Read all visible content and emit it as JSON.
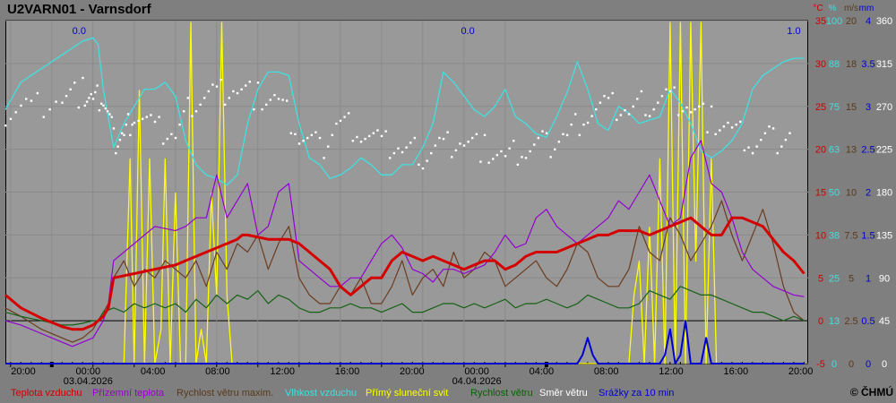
{
  "title": "U2VARN01 - Varnsdorf",
  "copyright": "© ČHMÚ",
  "colors": {
    "temp": "#d40000",
    "ground": "#9400d3",
    "gust": "#6b3c1e",
    "humidity": "#40e0e0",
    "sun": "#ffff00",
    "wind": "#136113",
    "direction": "#ffffff",
    "rain": "#0000cc"
  },
  "legend": [
    {
      "label": "Teplota vzduchu",
      "color": "#cc0000"
    },
    {
      "label": "Přízemní teplota",
      "color": "#9900cc"
    },
    {
      "label": "Rychlost větru maxim.",
      "color": "#5a3a1a"
    },
    {
      "label": "Vlhkost vzduchu",
      "color": "#40e0e0"
    },
    {
      "label": "Přímý sluneční svit",
      "color": "#ffff00"
    },
    {
      "label": "Rychlost větru",
      "color": "#006600"
    },
    {
      "label": "Směr větru",
      "color": "#ffffff"
    },
    {
      "label": "Srážky za 10 min",
      "color": "#0000cc"
    }
  ],
  "axis_headers": [
    {
      "text": "°C",
      "color": "#cc0000"
    },
    {
      "text": "%",
      "color": "#40e0e0"
    },
    {
      "text": "m/s",
      "color": "#5a3a1a"
    },
    {
      "text": "mm",
      "color": "#0000cc"
    }
  ],
  "chart_data": {
    "type": "line",
    "x_tick_labels": [
      "20:00",
      "00:00",
      "04:00",
      "08:00",
      "12:00",
      "16:00",
      "20:00",
      "00:00",
      "04:00",
      "08:00",
      "12:00",
      "16:00",
      "20:00"
    ],
    "date_labels": [
      "03.04.2026",
      "04.04.2026"
    ],
    "precip_totals": [
      "0.0",
      "0.0",
      "1.0"
    ],
    "right_axes": {
      "temperature_C": [
        35,
        30,
        25,
        20,
        15,
        10,
        5,
        0,
        -5
      ],
      "humidity_pct": [
        100,
        88,
        75,
        63,
        50,
        38,
        25,
        13,
        0
      ],
      "wind_ms": [
        20,
        18,
        15,
        13,
        10,
        7.5,
        5,
        2.5,
        0
      ],
      "precip_mm": [
        4,
        3.5,
        3,
        2.5,
        2,
        1.5,
        1,
        0.5,
        0
      ],
      "wind_dir_deg": [
        360,
        315,
        270,
        225,
        180,
        135,
        90,
        45,
        0
      ]
    },
    "ylim_temperature": [
      -5,
      35
    ],
    "hours_start": 19.5,
    "series": [
      {
        "name": "Teplota vzduchu",
        "unit": "°C",
        "x": [
          19.5,
          21,
          23,
          25,
          26,
          27,
          28,
          28.5,
          29,
          29.5,
          30,
          32,
          34,
          36,
          38,
          40,
          41,
          42,
          42.5,
          43,
          45,
          47,
          48,
          49,
          51,
          52,
          53,
          54,
          55,
          56,
          57,
          58,
          59,
          60,
          61,
          62,
          63,
          64,
          65,
          66,
          67,
          68,
          69,
          70,
          71,
          72,
          73,
          74,
          75,
          76,
          77,
          78,
          79,
          80,
          81,
          82,
          83,
          84,
          85,
          86,
          87,
          88,
          89,
          90,
          91,
          92,
          93,
          94,
          95,
          96,
          97
        ],
        "y": [
          3,
          1.5,
          0.3,
          -0.7,
          -1,
          -1,
          -0.5,
          0,
          0.5,
          1.5,
          5,
          5.5,
          6,
          6.5,
          7.5,
          8.5,
          9,
          9.5,
          10,
          10,
          9.5,
          9.5,
          9,
          8,
          6,
          4,
          3,
          4,
          5,
          5,
          7,
          8,
          7.5,
          7,
          7.5,
          7,
          6.5,
          6,
          6.5,
          7,
          7,
          6,
          6.5,
          7.5,
          8,
          8,
          8,
          8.5,
          9,
          9.5,
          10,
          10,
          10.5,
          10.5,
          10.5,
          10,
          10.5,
          11,
          11.5,
          12,
          11,
          10,
          10,
          12,
          12,
          11.5,
          11,
          9.5,
          8,
          7,
          5.5
        ]
      },
      {
        "name": "Přízemní teplota",
        "unit": "°C",
        "x": [
          19.5,
          21,
          23,
          25,
          26,
          27,
          28,
          28.5,
          29,
          29.5,
          30,
          32,
          34,
          36,
          37,
          38,
          39,
          40,
          41,
          42,
          43,
          44,
          45,
          46,
          47,
          48,
          49,
          50,
          51,
          52,
          53,
          54,
          55,
          56,
          57,
          58,
          59,
          60,
          61,
          62,
          63,
          64,
          65,
          66,
          67,
          68,
          69,
          70,
          71,
          72,
          73,
          74,
          75,
          76,
          77,
          78,
          79,
          80,
          81,
          82,
          83,
          84,
          85,
          86,
          87,
          88,
          89,
          90,
          91,
          92,
          93,
          94,
          95,
          96,
          97
        ],
        "y": [
          0,
          -0.5,
          -1.5,
          -2.5,
          -3,
          -2.5,
          -2,
          -1,
          0,
          2,
          7,
          9,
          11,
          10.5,
          11,
          12,
          12,
          17,
          12,
          14,
          16,
          10,
          11,
          15,
          16,
          7,
          6,
          5,
          4,
          4,
          5,
          5,
          7,
          9,
          10,
          8.5,
          6,
          5.5,
          4.5,
          6,
          6,
          5.5,
          6,
          6.5,
          8,
          10,
          8.5,
          9,
          12,
          13,
          11,
          10,
          9,
          10,
          11,
          12,
          14,
          13,
          15,
          17,
          14,
          11,
          12,
          19,
          21,
          16,
          15,
          12,
          8,
          6,
          5,
          4,
          3.5,
          3,
          2.8
        ]
      },
      {
        "name": "Rychlost větru maxim.",
        "unit": "m/s",
        "x": [
          19.5,
          21,
          23,
          25,
          26,
          27,
          28,
          28.5,
          29,
          29.5,
          30,
          31,
          32,
          33,
          34,
          35,
          36,
          37,
          38,
          39,
          40,
          41,
          42,
          43,
          44,
          45,
          46,
          47,
          48,
          49,
          50,
          51,
          52,
          53,
          54,
          55,
          56,
          57,
          58,
          59,
          60,
          61,
          62,
          63,
          64,
          65,
          66,
          67,
          68,
          69,
          70,
          71,
          72,
          73,
          74,
          75,
          76,
          77,
          78,
          79,
          80,
          81,
          82,
          83,
          84,
          85,
          86,
          87,
          88,
          89,
          90,
          91,
          92,
          93,
          94,
          95,
          96,
          97
        ],
        "y": [
          1.5,
          0.5,
          -1,
          -2,
          -2.5,
          -2,
          -1,
          0,
          1,
          2,
          5,
          7,
          4,
          6,
          5,
          7,
          6,
          5,
          7,
          4,
          8,
          6,
          9,
          8,
          10,
          6,
          9,
          11,
          5,
          3,
          2,
          2,
          4,
          3,
          5,
          2,
          2,
          4,
          7,
          3,
          5,
          6,
          4,
          8,
          5,
          6,
          8,
          7,
          4,
          5,
          6,
          7,
          5,
          4,
          6,
          9,
          8,
          5,
          4,
          4,
          6,
          11,
          8,
          7,
          12,
          10,
          7,
          9,
          11,
          14,
          10,
          7,
          10,
          13,
          9,
          4,
          1,
          0
        ]
      },
      {
        "name": "Vlhkost vzduchu",
        "unit": "%",
        "x": [
          19.5,
          21,
          23,
          25,
          26,
          27,
          28,
          28.5,
          29,
          30,
          31,
          32,
          33,
          34,
          35,
          36,
          37,
          38,
          39,
          40,
          41,
          42,
          43,
          44,
          45,
          46,
          47,
          48,
          49,
          50,
          51,
          52,
          53,
          54,
          55,
          56,
          57,
          58,
          59,
          60,
          61,
          62,
          63,
          64,
          65,
          66,
          67,
          68,
          69,
          70,
          71,
          72,
          73,
          74,
          75,
          76,
          77,
          78,
          79,
          80,
          81,
          82,
          83,
          84,
          85,
          86,
          87,
          88,
          89,
          90,
          91,
          92,
          93,
          94,
          95,
          96,
          97
        ],
        "y": [
          74,
          82,
          86,
          90,
          92,
          94,
          95,
          93,
          80,
          63,
          70,
          75,
          80,
          80,
          82,
          78,
          65,
          58,
          55,
          54,
          52,
          55,
          70,
          80,
          85,
          85,
          84,
          70,
          60,
          58,
          54,
          55,
          57,
          60,
          58,
          55,
          55,
          58,
          58,
          63,
          70,
          85,
          82,
          78,
          74,
          72,
          75,
          80,
          72,
          70,
          67,
          66,
          72,
          79,
          88,
          80,
          70,
          68,
          75,
          73,
          70,
          71,
          72,
          80,
          76,
          70,
          62,
          60,
          62,
          65,
          70,
          80,
          84,
          86,
          88,
          89,
          89
        ]
      },
      {
        "name": "Přímý sluneční svit",
        "unit": "0-1",
        "x": [
          19.5,
          31,
          31.3,
          31.6,
          32,
          32.5,
          33,
          33.5,
          34,
          34.6,
          35,
          35.5,
          36,
          36.5,
          37,
          37.5,
          38,
          38.5,
          39,
          39.5,
          40,
          40.5,
          41,
          41.5,
          42,
          80,
          80.5,
          81,
          81.5,
          82,
          82.5,
          83,
          83.5,
          84,
          84.5,
          85,
          85.5,
          86,
          86.5,
          87,
          87.5,
          88,
          88.5,
          89,
          89.5,
          90,
          97
        ],
        "y": [
          0,
          0,
          0.3,
          0.6,
          0,
          0.8,
          0,
          0.6,
          0,
          0.1,
          0.6,
          0,
          0.5,
          0,
          0,
          1,
          0,
          0.1,
          0,
          0.5,
          0.2,
          1,
          0.2,
          0,
          0,
          0,
          0.2,
          0.3,
          0,
          0.4,
          0,
          0.6,
          0,
          1,
          0,
          1,
          0,
          1,
          0.3,
          1,
          0,
          0.6,
          0,
          0,
          0,
          0,
          0
        ]
      },
      {
        "name": "Rychlost větru",
        "unit": "m/s",
        "x": [
          19.5,
          21,
          23,
          25,
          26,
          27,
          28,
          28.5,
          29,
          30,
          31,
          32,
          33,
          34,
          35,
          36,
          37,
          38,
          39,
          40,
          41,
          42,
          43,
          44,
          45,
          46,
          47,
          48,
          49,
          50,
          51,
          52,
          53,
          54,
          55,
          56,
          57,
          58,
          59,
          60,
          61,
          62,
          63,
          64,
          65,
          66,
          67,
          68,
          69,
          70,
          71,
          72,
          73,
          74,
          75,
          76,
          77,
          78,
          79,
          80,
          81,
          82,
          83,
          84,
          85,
          86,
          87,
          88,
          89,
          90,
          91,
          92,
          93,
          94,
          95,
          96,
          97
        ],
        "y": [
          1,
          0.5,
          0,
          -0.5,
          -0.5,
          -0.3,
          0,
          0,
          1,
          1.5,
          1,
          2,
          1.5,
          2,
          1.5,
          2,
          1,
          2.5,
          1.5,
          3,
          2,
          3,
          2.5,
          3.5,
          2,
          3,
          2.5,
          1.5,
          1,
          1,
          1.5,
          1.5,
          2,
          1.5,
          1.5,
          1,
          1.5,
          2,
          1,
          1,
          1.5,
          2,
          2,
          1.5,
          2,
          1.5,
          2,
          2.5,
          1.5,
          2,
          2,
          2.5,
          2,
          1.5,
          2,
          3,
          2.5,
          2,
          1.5,
          1.5,
          2,
          3.5,
          3,
          2.5,
          4,
          3.5,
          3,
          3,
          2.5,
          2,
          1.5,
          1,
          1,
          0.5,
          0,
          0.5,
          0
        ]
      },
      {
        "name": "Srážky za 10 min",
        "unit": "mm",
        "x": [
          19.5,
          75,
          75.5,
          76,
          76.5,
          77,
          83,
          83.5,
          84,
          84.5,
          85,
          85.5,
          86,
          87,
          87.5,
          88,
          96,
          97
        ],
        "y": [
          0,
          0,
          0.1,
          0.3,
          0.1,
          0,
          0,
          0.1,
          0.4,
          0,
          0.1,
          0.5,
          0,
          0,
          0.3,
          0,
          0,
          0
        ]
      }
    ],
    "wind_direction": {
      "name": "Směr větru",
      "unit": "deg",
      "x": [
        19.5,
        22,
        25,
        27,
        28,
        29,
        30,
        31,
        32,
        34,
        36,
        38,
        40,
        42,
        44,
        46,
        48,
        50,
        52,
        54,
        56,
        58,
        60,
        62,
        64,
        66,
        68,
        70,
        72,
        74,
        76,
        78,
        80,
        82,
        84,
        86,
        88,
        90,
        92,
        94,
        96
      ],
      "y": [
        265,
        270,
        280,
        285,
        275,
        280,
        235,
        240,
        265,
        245,
        240,
        280,
        285,
        290,
        280,
        275,
        240,
        225,
        255,
        245,
        230,
        225,
        220,
        230,
        235,
        225,
        215,
        225,
        230,
        240,
        265,
        270,
        265,
        275,
        280,
        270,
        255,
        245,
        230,
        235,
        240
      ]
    }
  }
}
